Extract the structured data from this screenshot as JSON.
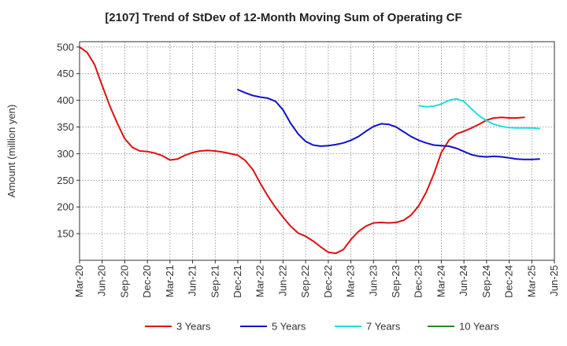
{
  "chart_data": {
    "type": "line",
    "title": "[2107]  Trend of StDev of 12-Month Moving Sum of Operating CF",
    "ylabel": "Amount (million yen)",
    "xlabel": "",
    "ylim": [
      100,
      510
    ],
    "y_ticks": [
      150,
      200,
      250,
      300,
      350,
      400,
      450,
      500
    ],
    "x_ticks": [
      "Mar-20",
      "Jun-20",
      "Sep-20",
      "Dec-20",
      "Mar-21",
      "Jun-21",
      "Sep-21",
      "Dec-21",
      "Mar-22",
      "Jun-22",
      "Sep-22",
      "Dec-22",
      "Mar-23",
      "Jun-23",
      "Sep-23",
      "Dec-23",
      "Mar-24",
      "Jun-24",
      "Sep-24",
      "Dec-24",
      "Mar-25",
      "Jun-25"
    ],
    "grid": true,
    "legend_position": "bottom",
    "series": [
      {
        "name": "3 Years",
        "color": "#dd1111",
        "start_index": 0,
        "values": [
          500,
          490,
          467,
          428,
          390,
          357,
          328,
          312,
          305,
          304,
          301,
          296,
          288,
          290,
          297,
          302,
          305,
          306,
          305,
          303,
          300,
          297,
          287,
          270,
          244,
          220,
          199,
          181,
          164,
          151,
          145,
          136,
          125,
          115,
          113,
          120,
          139,
          154,
          164,
          170,
          171,
          170,
          171,
          175,
          185,
          202,
          228,
          262,
          302,
          325,
          337,
          342,
          348,
          355,
          363,
          367,
          368,
          367,
          367,
          368
        ]
      },
      {
        "name": "5 Years",
        "color": "#1111cc",
        "start_index": 21,
        "values": [
          420,
          414,
          409,
          406,
          404,
          398,
          382,
          357,
          337,
          323,
          316,
          314,
          315,
          317,
          320,
          325,
          332,
          342,
          351,
          356,
          355,
          350,
          341,
          332,
          325,
          320,
          316,
          315,
          314,
          310,
          304,
          298,
          295,
          294,
          295,
          294,
          292,
          290,
          289,
          289,
          290
        ]
      },
      {
        "name": "7 Years",
        "color": "#22dddd",
        "start_index": 45,
        "values": [
          390,
          388,
          389,
          393,
          400,
          403,
          398,
          384,
          371,
          362,
          355,
          351,
          349,
          348,
          348,
          348,
          347
        ]
      },
      {
        "name": "10 Years",
        "color": "#228822",
        "start_index": 0,
        "values": []
      }
    ]
  }
}
